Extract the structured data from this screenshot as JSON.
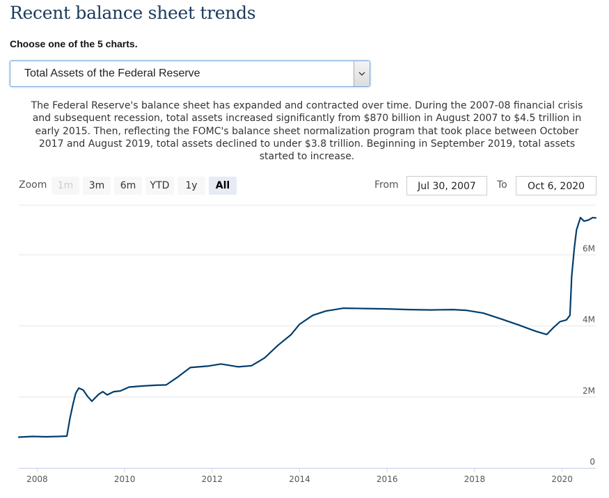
{
  "page": {
    "title": "Recent balance sheet trends",
    "choose_label": "Choose one of the 5 charts."
  },
  "selector": {
    "value": "Total Assets of the Federal Reserve",
    "arrow_icon": "chevron-down-icon"
  },
  "description": "The Federal Reserve's balance sheet has expanded and contracted over time. During the 2007-08 financial crisis and subsequent recession, total assets increased significantly from $870 billion in August 2007 to $4.5 trillion in early 2015. Then, reflecting the FOMC's balance sheet normalization program that took place between October 2017 and August 2019, total assets declined to under $3.8 trillion. Beginning in September 2019, total assets started to increase.",
  "zoom": {
    "label": "Zoom",
    "buttons": [
      {
        "label": "1m",
        "state": "disabled"
      },
      {
        "label": "3m",
        "state": "normal"
      },
      {
        "label": "6m",
        "state": "normal"
      },
      {
        "label": "YTD",
        "state": "normal"
      },
      {
        "label": "1y",
        "state": "normal"
      },
      {
        "label": "All",
        "state": "active"
      }
    ]
  },
  "range": {
    "from_label": "From",
    "from_value": "Jul 30, 2007",
    "to_label": "To",
    "to_value": "Oct 6, 2020"
  },
  "chart_data": {
    "type": "line",
    "title": "Total Assets of the Federal Reserve",
    "xlabel": "",
    "ylabel": "",
    "series": [
      {
        "name": "Total Assets",
        "color": "#003d6b",
        "points": [
          [
            2007.58,
            0.87
          ],
          [
            2007.9,
            0.89
          ],
          [
            2008.2,
            0.88
          ],
          [
            2008.5,
            0.89
          ],
          [
            2008.68,
            0.9
          ],
          [
            2008.75,
            1.4
          ],
          [
            2008.82,
            1.8
          ],
          [
            2008.88,
            2.1
          ],
          [
            2008.95,
            2.25
          ],
          [
            2009.05,
            2.2
          ],
          [
            2009.15,
            2.02
          ],
          [
            2009.25,
            1.88
          ],
          [
            2009.4,
            2.07
          ],
          [
            2009.5,
            2.15
          ],
          [
            2009.6,
            2.06
          ],
          [
            2009.75,
            2.15
          ],
          [
            2009.9,
            2.17
          ],
          [
            2010.1,
            2.28
          ],
          [
            2010.4,
            2.31
          ],
          [
            2010.7,
            2.33
          ],
          [
            2010.95,
            2.34
          ],
          [
            2011.2,
            2.55
          ],
          [
            2011.5,
            2.83
          ],
          [
            2011.9,
            2.87
          ],
          [
            2012.2,
            2.93
          ],
          [
            2012.6,
            2.85
          ],
          [
            2012.9,
            2.88
          ],
          [
            2013.2,
            3.1
          ],
          [
            2013.5,
            3.45
          ],
          [
            2013.8,
            3.75
          ],
          [
            2014.0,
            4.05
          ],
          [
            2014.3,
            4.3
          ],
          [
            2014.6,
            4.42
          ],
          [
            2015.0,
            4.5
          ],
          [
            2015.5,
            4.49
          ],
          [
            2016.0,
            4.48
          ],
          [
            2016.5,
            4.46
          ],
          [
            2017.0,
            4.45
          ],
          [
            2017.5,
            4.46
          ],
          [
            2017.8,
            4.44
          ],
          [
            2018.2,
            4.36
          ],
          [
            2018.6,
            4.2
          ],
          [
            2019.0,
            4.03
          ],
          [
            2019.4,
            3.85
          ],
          [
            2019.65,
            3.76
          ],
          [
            2019.8,
            3.95
          ],
          [
            2019.95,
            4.12
          ],
          [
            2020.1,
            4.17
          ],
          [
            2020.18,
            4.3
          ],
          [
            2020.22,
            5.4
          ],
          [
            2020.28,
            6.2
          ],
          [
            2020.33,
            6.7
          ],
          [
            2020.42,
            7.05
          ],
          [
            2020.5,
            6.95
          ],
          [
            2020.6,
            6.98
          ],
          [
            2020.7,
            7.05
          ],
          [
            2020.77,
            7.04
          ]
        ]
      }
    ],
    "y_axis": {
      "range": [
        0,
        7.3
      ],
      "ticks": [
        0,
        2,
        4,
        6
      ],
      "tick_labels": [
        "0",
        "2M",
        "4M",
        "6M"
      ],
      "position": "right",
      "grid": true
    },
    "x_axis": {
      "range": [
        2007.58,
        2020.77
      ],
      "ticks": [
        2008,
        2010,
        2012,
        2014,
        2016,
        2018,
        2020
      ],
      "tick_labels": [
        "2008",
        "2010",
        "2012",
        "2014",
        "2016",
        "2018",
        "2020"
      ]
    }
  }
}
